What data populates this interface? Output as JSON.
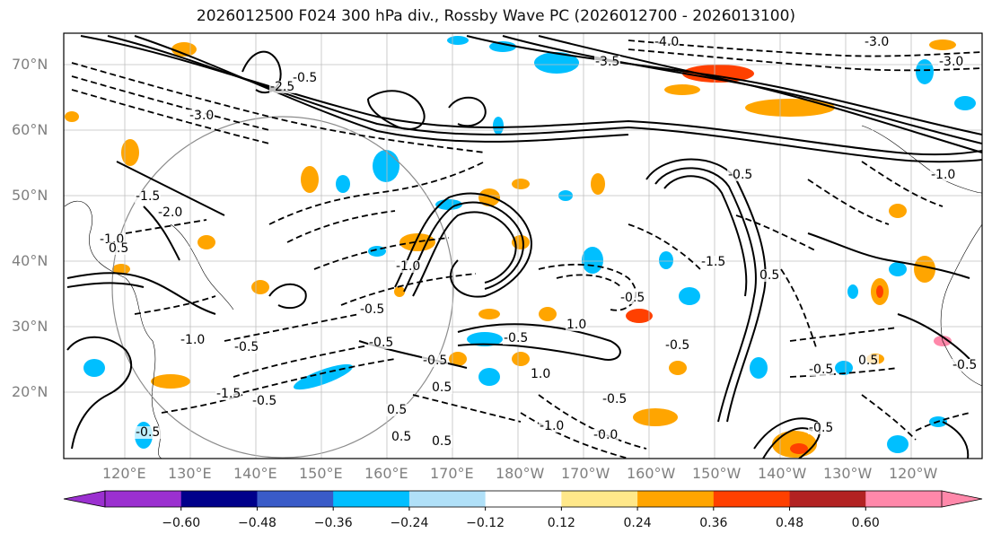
{
  "title": "2026012500 F024 300 hPa div., Rossby Wave PC (2026012700 - 2026013100)",
  "lat_labels": [
    "70°N",
    "60°N",
    "50°N",
    "40°N",
    "30°N",
    "20°N"
  ],
  "lon_labels": [
    "120°E",
    "130°E",
    "140°E",
    "150°E",
    "160°E",
    "170°E",
    "180°W",
    "170°W",
    "160°W",
    "150°W",
    "140°W",
    "130°W",
    "120°W"
  ],
  "contour_labels": [
    "-4.0",
    "-3.0",
    "-3.5",
    "-2.5",
    "-3.0",
    "-3.0",
    "-1.5",
    "-2.0",
    "-0.5",
    "-1.0",
    "0.5",
    "-1.0",
    "-0.5",
    "-1.0",
    "-0.5",
    "1.0",
    "-1.5",
    "-0.5",
    "-0.5",
    "0.5",
    "-0.5",
    "0.5",
    "0.5",
    "-0.5",
    "1.0",
    "-1.0",
    "-0.5",
    "-1.0",
    "-0.5",
    "0.5",
    "-0.5",
    "-0.5",
    "-0.0",
    "-0.5",
    "-0.5",
    "-1.5",
    "0.5",
    "0.5",
    "-0.5",
    "-0.5"
  ],
  "colorbar": {
    "ticks": [
      "−0.60",
      "−0.48",
      "−0.36",
      "−0.24",
      "−0.12",
      "0.12",
      "0.24",
      "0.36",
      "0.48",
      "0.60"
    ],
    "colors": [
      "#9b30d0",
      "#00008b",
      "#3a5bc8",
      "#00bfff",
      "#b0e0f8",
      "#ffffff",
      "#ffe88a",
      "#ffa500",
      "#ff4000",
      "#b22222",
      "#ff88aa"
    ]
  }
}
